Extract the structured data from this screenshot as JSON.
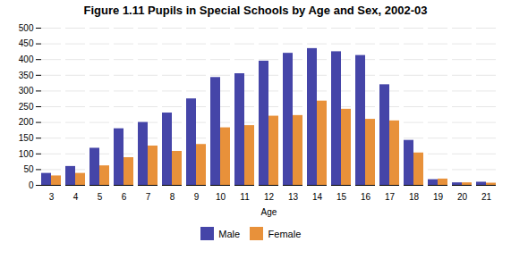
{
  "chart_data": {
    "type": "bar",
    "title": "Figure 1.11    Pupils in Special Schools by Age and Sex, 2002-03",
    "xlabel": "Age",
    "categories": [
      "3",
      "4",
      "5",
      "6",
      "7",
      "8",
      "9",
      "10",
      "11",
      "12",
      "13",
      "14",
      "15",
      "16",
      "17",
      "18",
      "19",
      "20",
      "21"
    ],
    "series": [
      {
        "name": "Male",
        "color": "#4545A8",
        "values": [
          38,
          60,
          118,
          180,
          200,
          230,
          275,
          343,
          355,
          395,
          420,
          435,
          425,
          413,
          320,
          143,
          18,
          8,
          10
        ]
      },
      {
        "name": "Female",
        "color": "#E8913A",
        "values": [
          30,
          38,
          62,
          88,
          125,
          108,
          130,
          183,
          190,
          220,
          222,
          268,
          242,
          210,
          205,
          103,
          20,
          8,
          7
        ]
      }
    ],
    "ylim": [
      0,
      500
    ],
    "yticks": [
      0,
      50,
      100,
      150,
      200,
      250,
      300,
      350,
      400,
      450,
      500
    ],
    "grid": true,
    "legend": "bottom"
  }
}
